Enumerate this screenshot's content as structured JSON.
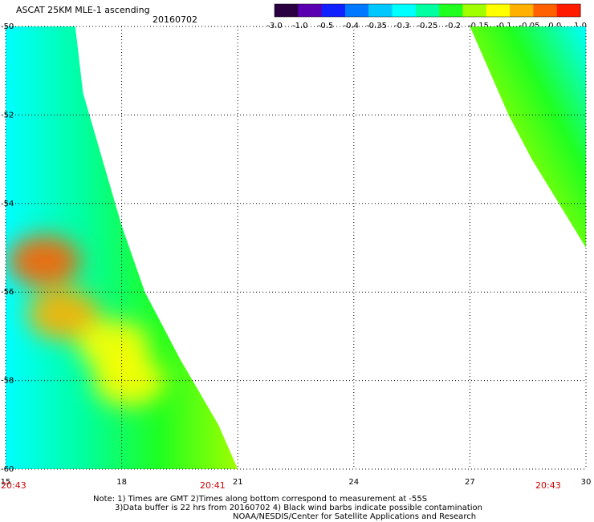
{
  "header": {
    "title": "ASCAT 25KM MLE-1 ascending",
    "date": "20160702"
  },
  "colorbar": {
    "labels": [
      "-3.0",
      "-1.0",
      "-0.5",
      "-0.4",
      "-0.35",
      "-0.3",
      "-0.25",
      "-0.2",
      "-0.15",
      "-0.1",
      "-0.05",
      "0.0",
      "1.0"
    ],
    "colors": [
      "#2a0040",
      "#5a00b0",
      "#1020ff",
      "#0078ff",
      "#00c8ff",
      "#00ffff",
      "#00ffa0",
      "#20ff20",
      "#a0ff00",
      "#ffff00",
      "#ffb000",
      "#ff6000",
      "#ff1a00"
    ]
  },
  "map": {
    "lon_ticks": [
      "15",
      "18",
      "21",
      "24",
      "27",
      "30"
    ],
    "lat_ticks": [
      "-50",
      "-52",
      "-54",
      "-56",
      "-58",
      "-60"
    ],
    "lon_range": [
      15,
      30
    ],
    "lat_range": [
      -50,
      -60
    ],
    "grid": true,
    "time_labels": [
      {
        "lon": 15,
        "text": "20:43"
      },
      {
        "lon": 20,
        "text": "20:41"
      },
      {
        "lon": 29,
        "text": "20:43"
      }
    ],
    "swaths": [
      {
        "name": "west-swath",
        "edge": [
          [
            16.8,
            -50
          ],
          [
            17.0,
            -51.5
          ],
          [
            17.5,
            -53
          ],
          [
            18.0,
            -54.5
          ],
          [
            18.6,
            -56
          ],
          [
            19.5,
            -57.5
          ],
          [
            20.5,
            -59
          ],
          [
            21.0,
            -60
          ]
        ],
        "colors_west_to_east": [
          "#00ffff",
          "#00ffa0",
          "#20ff20",
          "#a0ff00"
        ],
        "hotspots": [
          {
            "lon": 16.0,
            "lat": -55.3,
            "level": "0.0"
          },
          {
            "lon": 16.5,
            "lat": -56.5,
            "level": "-0.05"
          },
          {
            "lon": 17.8,
            "lat": -57.2,
            "level": "-0.1"
          },
          {
            "lon": 18.2,
            "lat": -58.0,
            "level": "-0.1"
          }
        ]
      },
      {
        "name": "east-swath",
        "edge": [
          [
            27.0,
            -50
          ],
          [
            27.5,
            -51
          ],
          [
            28.0,
            -52
          ],
          [
            28.6,
            -53
          ],
          [
            29.3,
            -54
          ],
          [
            30.0,
            -55
          ]
        ],
        "colors": [
          "#00ffff",
          "#20ff20",
          "#a0ff00",
          "#ffff00"
        ]
      }
    ]
  },
  "notes": {
    "line1": "Note: 1) Times are GMT 2)Times along bottom correspond to measurement at -55S",
    "line2": "3)Data buffer is 22 hrs from 20160702 4) Black wind barbs indicate possible contamination",
    "line3": "NOAA/NESDIS/Center for Satellite Applications and Research"
  }
}
